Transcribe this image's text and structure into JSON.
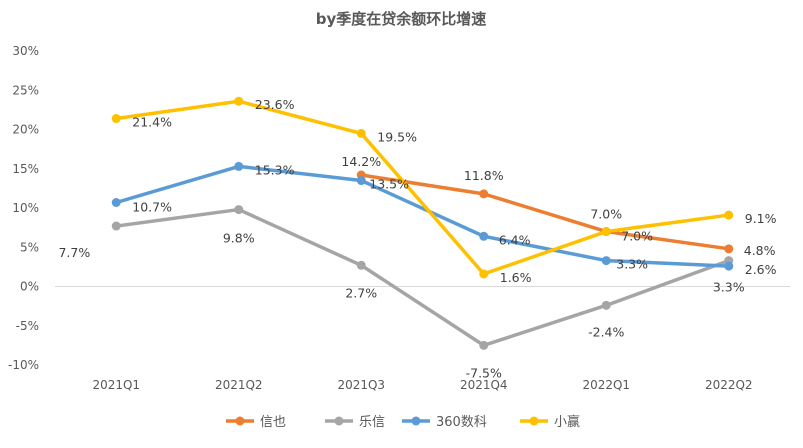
{
  "chart_data": {
    "type": "line",
    "title": "by季度在贷余额环比增速",
    "xlabel": "",
    "ylabel": "",
    "categories": [
      "2021Q1",
      "2021Q2",
      "2021Q3",
      "2021Q4",
      "2022Q1",
      "2022Q2"
    ],
    "ylim": [
      -10,
      30
    ],
    "yticks": [
      -10,
      -5,
      0,
      5,
      10,
      15,
      20,
      25,
      30
    ],
    "ytick_labels": [
      "-10%",
      "-5%",
      "0%",
      "5%",
      "10%",
      "15%",
      "20%",
      "25%",
      "30%"
    ],
    "legend_position": "bottom",
    "grid": false,
    "series": [
      {
        "name": "信也",
        "color": "#ED7D31",
        "values": [
          null,
          null,
          14.2,
          11.8,
          7.0,
          4.8
        ],
        "labels": [
          null,
          null,
          "14.2%",
          "11.8%",
          "7.0%",
          "4.8%"
        ]
      },
      {
        "name": "乐信",
        "color": "#A5A5A5",
        "values": [
          7.7,
          9.8,
          2.7,
          -7.5,
          -2.4,
          3.3
        ],
        "labels": [
          "7.7%",
          "9.8%",
          "2.7%",
          "-7.5%",
          "-2.4%",
          "3.3%"
        ]
      },
      {
        "name": "360数科",
        "color": "#5B9BD5",
        "values": [
          10.7,
          15.3,
          13.5,
          6.4,
          3.3,
          2.6
        ],
        "labels": [
          "10.7%",
          "15.3%",
          "13.5%",
          "6.4%",
          "3.3%",
          "2.6%"
        ]
      },
      {
        "name": "小赢",
        "color": "#FFC000",
        "values": [
          21.4,
          23.6,
          19.5,
          1.6,
          7.0,
          9.1
        ],
        "labels": [
          "21.4%",
          "23.6%",
          "19.5%",
          "1.6%",
          "7.0%",
          "9.1%"
        ]
      }
    ]
  }
}
